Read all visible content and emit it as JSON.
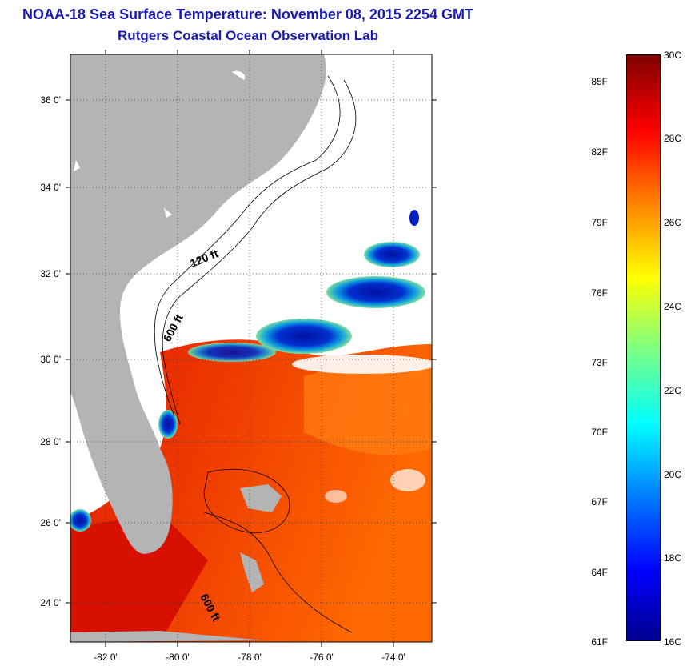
{
  "header": {
    "title": "NOAA-18 Sea Surface Temperature:  November 08, 2015 2254 GMT",
    "subtitle": "Rutgers Coastal Ocean Observation Lab"
  },
  "map": {
    "lon_ticks": [
      "-82 0'",
      "-80 0'",
      "-78 0'",
      "-76 0'",
      "-74 0'"
    ],
    "lat_ticks": [
      "36 0'",
      "34 0'",
      "32 0'",
      "30 0'",
      "28 0'",
      "26 0'",
      "24 0'"
    ],
    "contour_labels": [
      "120 ft",
      "600 ft",
      "600 ft"
    ],
    "land_color": "#b4b4b4",
    "cloud_color": "#ffffff"
  },
  "colorbar": {
    "fahrenheit": [
      "85F",
      "82F",
      "79F",
      "76F",
      "73F",
      "70F",
      "67F",
      "64F",
      "61F"
    ],
    "celsius": [
      "30C",
      "28C",
      "26C",
      "24C",
      "22C",
      "20C",
      "18C",
      "16C"
    ],
    "range_c": [
      16,
      30
    ],
    "scale": "jet",
    "colors": [
      "#00008f",
      "#0000ff",
      "#0080ff",
      "#00ffff",
      "#80ff80",
      "#ffff00",
      "#ff8000",
      "#ff0000",
      "#800000"
    ]
  }
}
